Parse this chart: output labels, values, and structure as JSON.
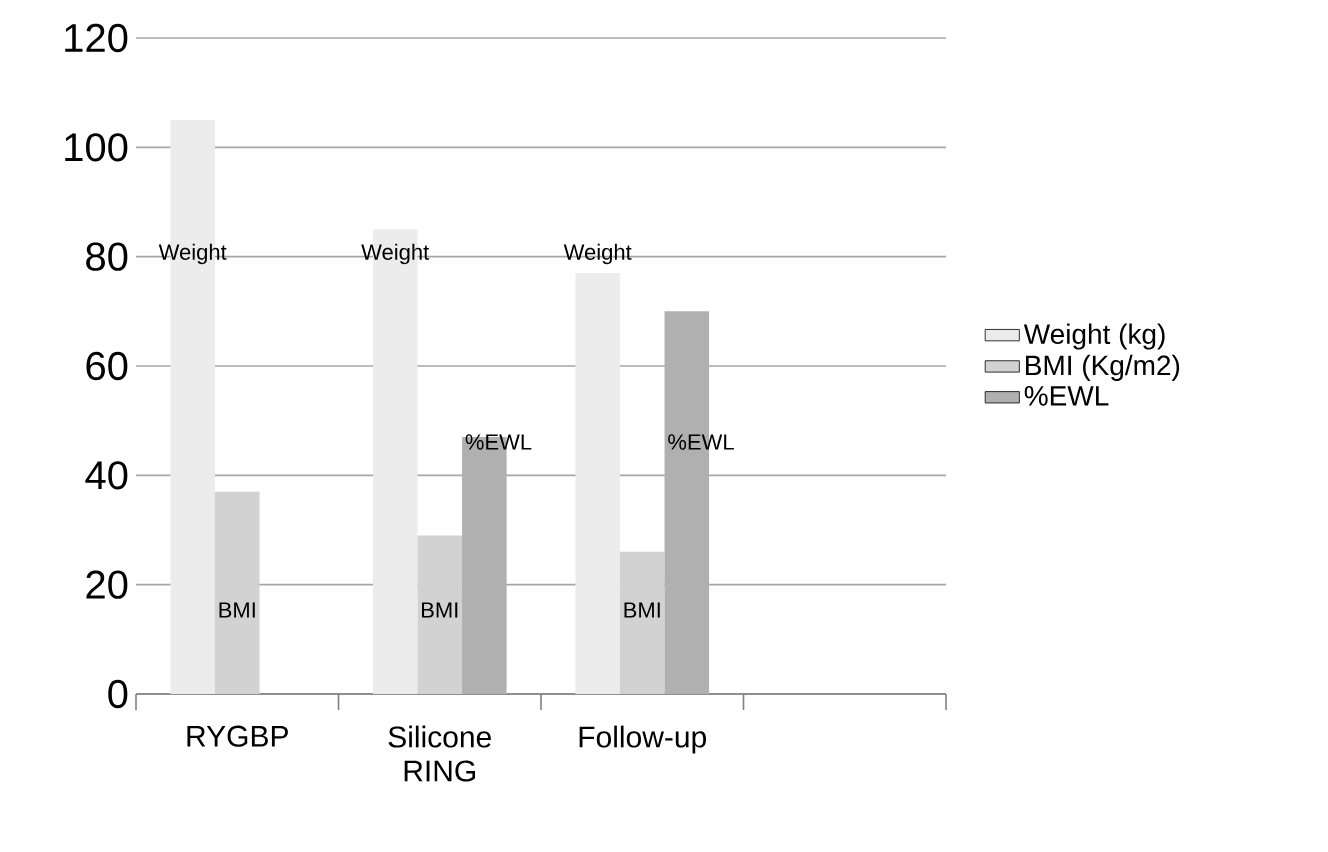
{
  "chart_data": {
    "type": "bar",
    "categories": [
      "RYGBP",
      "Silicone RING",
      "Follow-up",
      null
    ],
    "series": [
      {
        "name": "Weight (kg)",
        "color": "#ececec",
        "values": [
          105,
          85,
          77,
          null
        ]
      },
      {
        "name": "BMI (Kg/m2)",
        "color": "#d2d2d2",
        "values": [
          37,
          29,
          26,
          null
        ]
      },
      {
        "name": "%EWL",
        "color": "#b0b0b0",
        "values": [
          null,
          47,
          70,
          null
        ]
      }
    ],
    "ylim": [
      0,
      120
    ],
    "yticks": [
      0,
      20,
      40,
      60,
      80,
      100,
      120
    ],
    "grid": "y",
    "legend": "right",
    "annotations": [
      "Weight",
      "BMI",
      "Weight",
      "BMI",
      "%EWL",
      "Weight",
      "BMI",
      "%EWL"
    ]
  }
}
